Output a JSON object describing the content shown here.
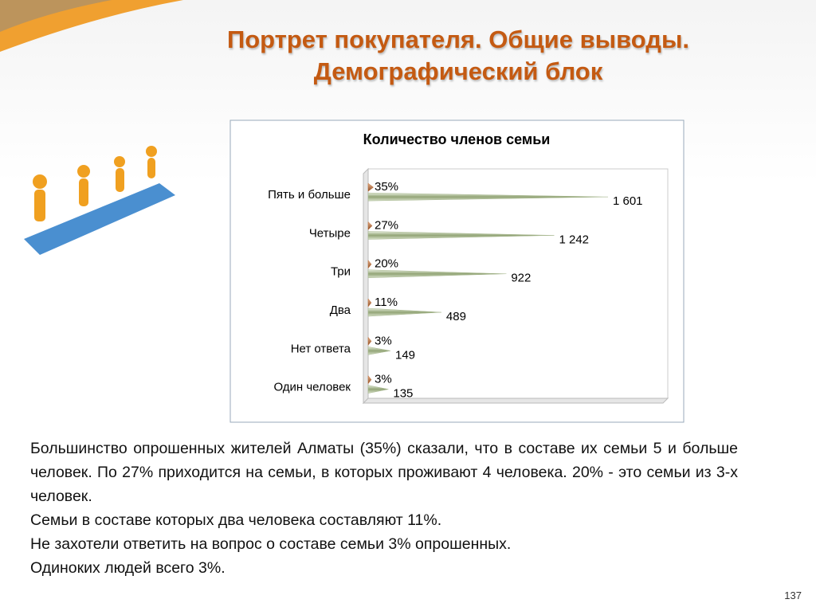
{
  "title": [
    "Портрет покупателя. Общие выводы.",
    "Демографический блок"
  ],
  "chart_data": {
    "type": "cone_bar_horizontal",
    "title": "Количество членов семьи",
    "categories": [
      "Пять и больше",
      "Четыре",
      "Три",
      "Два",
      "Нет ответа",
      "Один человек"
    ],
    "series": [
      {
        "color": "#c0703a",
        "values": [
          35,
          27,
          20,
          11,
          3,
          3
        ],
        "value_labels": [
          "35%",
          "27%",
          "20%",
          "11%",
          "3%",
          "3%"
        ]
      },
      {
        "color": "#a8b890",
        "values": [
          1601,
          1242,
          922,
          489,
          149,
          135
        ],
        "value_labels": [
          "1 601",
          "1 242",
          "922",
          "489",
          "149",
          "135"
        ]
      }
    ],
    "xlim": [
      0,
      2000
    ]
  },
  "text": [
    "Большинство опрошенных жителей Алматы (35%) сказали, что в составе их семьи 5 и больше человек. По 27% приходится на семьи, в которых проживают  4 человека. 20% - это семьи из 3-х человек.",
    "Семьи в составе которых два человека составляют 11%.",
    "Не захотели ответить на вопрос о составе семьи  3% опрошенных.",
    "Одиноких людей всего 3%."
  ],
  "page_number": "137"
}
